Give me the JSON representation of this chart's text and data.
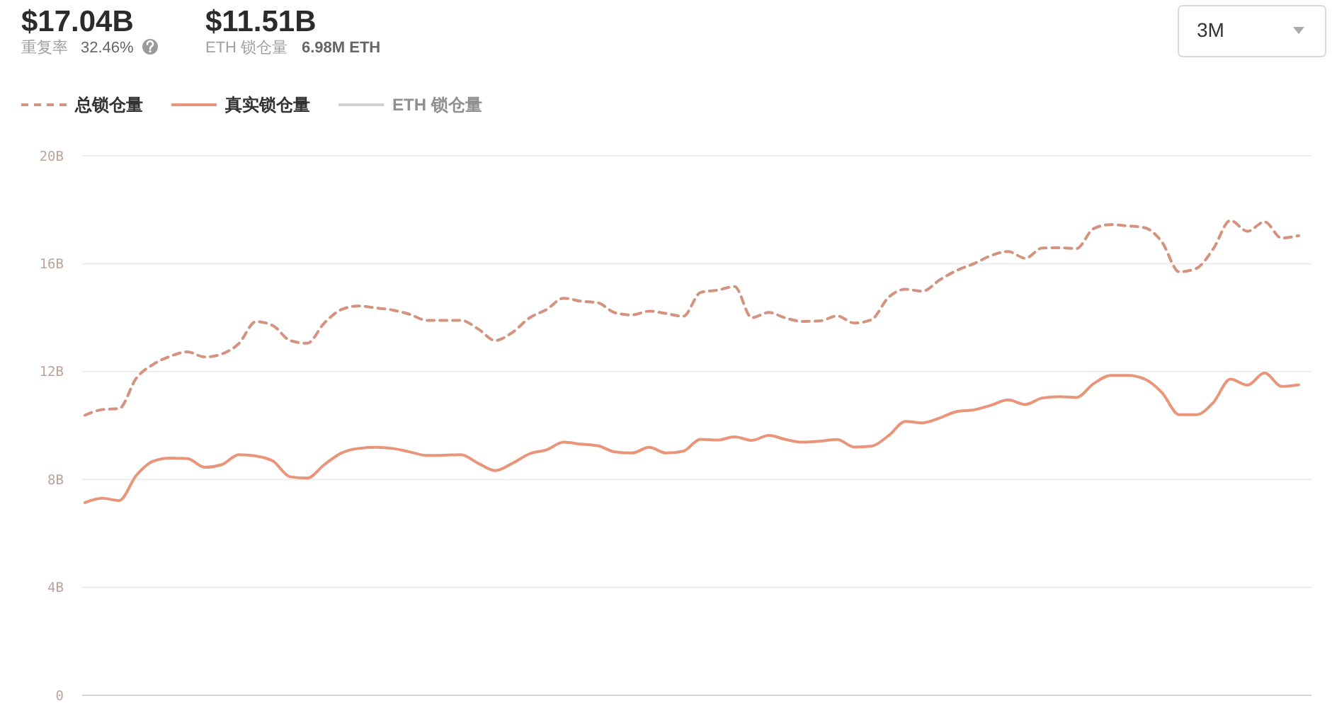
{
  "chart_data": {
    "type": "line",
    "annotations": [
      "$17.04B",
      "重复率",
      "32.46%",
      "$11.51B",
      "ETH 锁仓量",
      "6.98M ETH",
      "3M"
    ],
    "categories": [
      null,
      null,
      null,
      null,
      null,
      null,
      null,
      null,
      null,
      null,
      null,
      null,
      null,
      null,
      null,
      null,
      null,
      null,
      null,
      null,
      null,
      null,
      null,
      null,
      null,
      null,
      null,
      null,
      null,
      null,
      null,
      null,
      null,
      null,
      null,
      null,
      null,
      null,
      null,
      null,
      null,
      null,
      null,
      null,
      null,
      null,
      null,
      null,
      null,
      null,
      null,
      null,
      null,
      null,
      null,
      null,
      null,
      null,
      null,
      null,
      null,
      null,
      null,
      null,
      null,
      null,
      null,
      null,
      null,
      null,
      null,
      null
    ],
    "series": [
      {
        "name": "总锁仓量",
        "color": "#d4937f",
        "line_style": "dashed",
        "values": [
          10.38,
          10.59,
          10.63,
          11.75,
          12.27,
          12.57,
          12.73,
          12.54,
          12.65,
          13.04,
          13.85,
          13.7,
          13.15,
          13.05,
          13.8,
          14.3,
          14.43,
          14.36,
          14.28,
          14.12,
          13.9,
          13.9,
          13.9,
          13.58,
          13.15,
          13.45,
          13.99,
          14.3,
          14.72,
          14.61,
          14.55,
          14.18,
          14.1,
          14.24,
          14.15,
          14.05,
          14.93,
          15.02,
          15.15,
          14.0,
          14.19,
          13.98,
          13.86,
          13.88,
          14.06,
          13.8,
          13.92,
          14.75,
          15.05,
          14.98,
          15.4,
          15.75,
          16.0,
          16.3,
          16.45,
          16.2,
          16.58,
          16.59,
          16.56,
          17.3,
          17.45,
          17.4,
          17.33,
          16.8,
          15.7,
          15.82,
          16.55,
          17.6,
          17.2,
          17.55,
          16.95,
          17.04
        ]
      },
      {
        "name": "真实锁仓量",
        "color": "#e8957a",
        "line_style": "solid",
        "values": [
          7.14,
          7.3,
          7.22,
          8.15,
          8.68,
          8.79,
          8.77,
          8.45,
          8.55,
          8.92,
          8.87,
          8.68,
          8.1,
          8.05,
          8.55,
          8.98,
          9.15,
          9.19,
          9.15,
          9.02,
          8.89,
          8.9,
          8.92,
          8.6,
          8.33,
          8.6,
          8.95,
          9.1,
          9.38,
          9.31,
          9.25,
          9.02,
          8.98,
          9.19,
          8.98,
          9.05,
          9.49,
          9.46,
          9.58,
          9.45,
          9.63,
          9.48,
          9.38,
          9.42,
          9.48,
          9.2,
          9.23,
          9.62,
          10.15,
          10.1,
          10.28,
          10.52,
          10.58,
          10.75,
          10.95,
          10.78,
          11.02,
          11.07,
          11.04,
          11.55,
          11.86,
          11.86,
          11.72,
          11.22,
          10.4,
          10.4,
          10.85,
          11.72,
          11.5,
          11.95,
          11.45,
          11.51
        ]
      },
      {
        "name": "ETH 锁仓量",
        "color": "#d0d0d0",
        "line_style": "solid",
        "values": [
          null,
          null,
          null,
          null,
          null,
          null,
          null,
          null,
          null,
          null,
          null,
          null,
          null,
          null,
          null,
          null,
          null,
          null,
          null,
          null,
          null,
          null,
          null,
          null,
          null,
          null,
          null,
          null,
          null,
          null,
          null,
          null,
          null,
          null,
          null,
          null,
          null,
          null,
          null,
          null,
          null,
          null,
          null,
          null,
          null,
          null,
          null,
          null,
          null,
          null,
          null,
          null,
          null,
          null,
          null,
          null,
          null,
          null,
          null,
          null,
          null,
          null,
          null,
          null,
          null,
          null,
          null,
          null,
          null,
          null,
          null,
          null
        ]
      }
    ],
    "ylim": [
      0,
      20
    ],
    "yticks": [
      0,
      {
        "value": 4,
        "label": "4B"
      },
      {
        "value": 8,
        "label": "8B"
      },
      {
        "value": 12,
        "label": "12B"
      },
      {
        "value": 16,
        "label": "16B"
      },
      {
        "value": 20,
        "label": "20B"
      }
    ],
    "grid": "y",
    "legend": "top left"
  }
}
